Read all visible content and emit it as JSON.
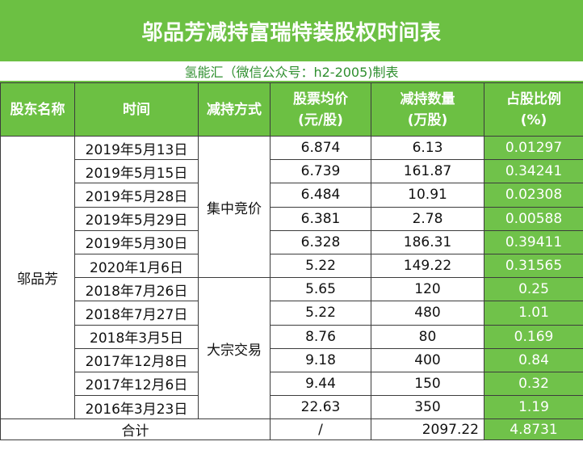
{
  "title": "邬品芳减持富瑞特装股权时间表",
  "subtitle": "氢能汇（微信公众号：h2-2005)制表",
  "headers": {
    "shareholder": "股东名称",
    "time": "时间",
    "method": "减持方式",
    "avg_price_line1": "股票均价",
    "avg_price_line2": "(元/股)",
    "quantity_line1": "减持数量",
    "quantity_line2": "(万股)",
    "ratio_line1": "占股比例",
    "ratio_line2": "(%)"
  },
  "shareholder_name": "邬品芳",
  "method_groups": [
    {
      "label": "集中竞价"
    },
    {
      "label": "大宗交易"
    }
  ],
  "rows": [
    {
      "date": "2019年5月13日",
      "price": "6.874",
      "quantity": "6.13",
      "ratio": "0.01297"
    },
    {
      "date": "2019年5月15日",
      "price": "6.739",
      "quantity": "161.87",
      "ratio": "0.34241"
    },
    {
      "date": "2019年5月28日",
      "price": "6.484",
      "quantity": "10.91",
      "ratio": "0.02308"
    },
    {
      "date": "2019年5月29日",
      "price": "6.381",
      "quantity": "2.78",
      "ratio": "0.00588"
    },
    {
      "date": "2019年5月30日",
      "price": "6.328",
      "quantity": "186.31",
      "ratio": "0.39411"
    },
    {
      "date": "2020年1月6日",
      "price": "5.22",
      "quantity": "149.22",
      "ratio": "0.31565"
    },
    {
      "date": "2018年7月26日",
      "price": "5.65",
      "quantity": "120",
      "ratio": "0.25"
    },
    {
      "date": "2018年7月27日",
      "price": "5.22",
      "quantity": "480",
      "ratio": "1.01"
    },
    {
      "date": "2018年3月5日",
      "price": "8.76",
      "quantity": "80",
      "ratio": "0.169"
    },
    {
      "date": "2017年12月8日",
      "price": "9.18",
      "quantity": "400",
      "ratio": "0.84"
    },
    {
      "date": "2017年12月6日",
      "price": "9.44",
      "quantity": "150",
      "ratio": "0.32"
    },
    {
      "date": "2016年3月23日",
      "price": "22.63",
      "quantity": "350",
      "ratio": "1.19"
    }
  ],
  "total": {
    "label": "合计",
    "price": "/",
    "quantity": "2097.22",
    "ratio": "4.8731"
  },
  "colors": {
    "header_green": "#6cc043",
    "subtitle_text": "#2f8f2f"
  }
}
